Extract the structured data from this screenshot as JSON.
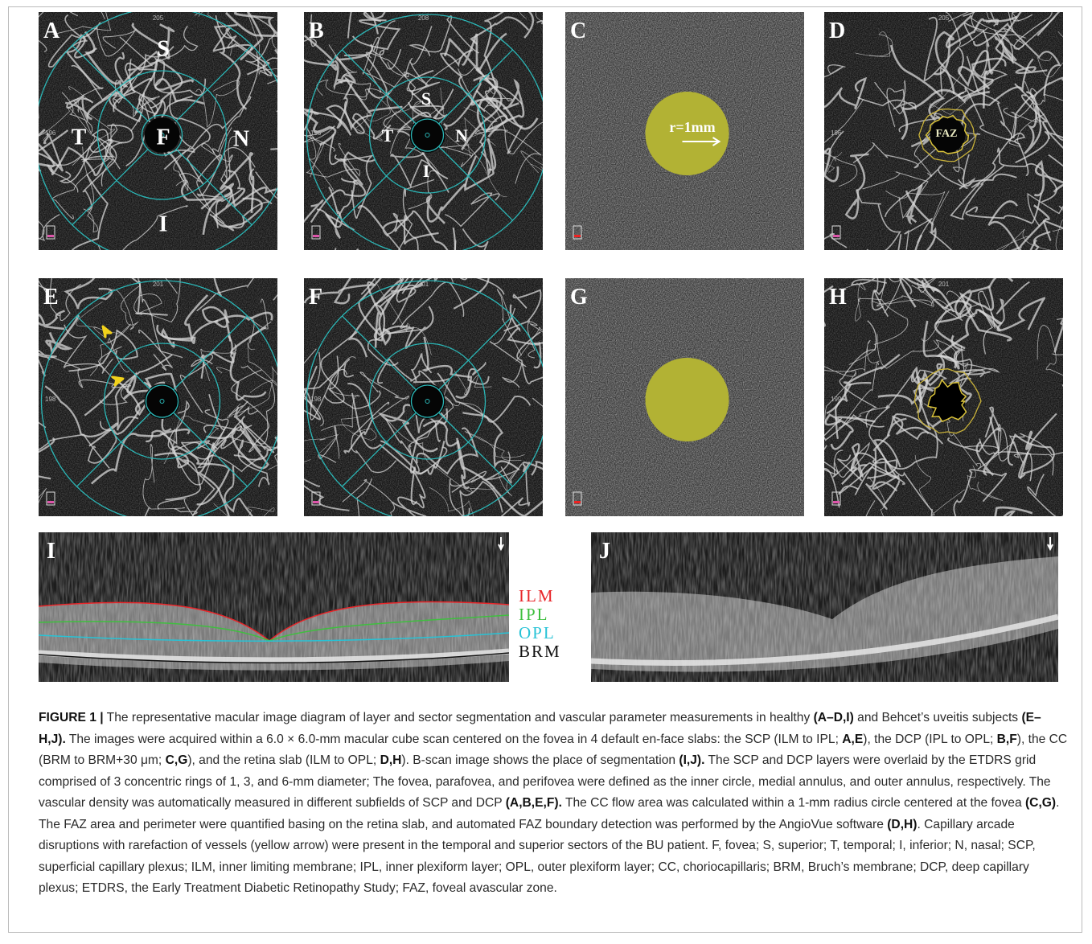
{
  "figure": {
    "panels": [
      {
        "letter": "A",
        "top_number": "205",
        "left_number": "196",
        "labels": [
          "S",
          "T",
          "N",
          "I",
          "F"
        ]
      },
      {
        "letter": "B",
        "top_number": "208",
        "left_number": "196",
        "labels": [
          "S",
          "T",
          "N",
          "I"
        ]
      },
      {
        "letter": "C",
        "labels": [
          "r=1mm"
        ]
      },
      {
        "letter": "D",
        "top_number": "205",
        "left_number": "196",
        "labels": [
          "FAZ"
        ]
      },
      {
        "letter": "E",
        "top_number": "201",
        "left_number": "198",
        "labels": []
      },
      {
        "letter": "F",
        "top_number": "201",
        "left_number": "198",
        "labels": []
      },
      {
        "letter": "G",
        "labels": []
      },
      {
        "letter": "H",
        "top_number": "201",
        "left_number": "199",
        "labels": []
      }
    ],
    "bscans": [
      {
        "letter": "I"
      },
      {
        "letter": "J"
      }
    ],
    "layer_legend": [
      {
        "name": "ILM",
        "color": "#e8262a"
      },
      {
        "name": "IPL",
        "color": "#3fbf3f"
      },
      {
        "name": "OPL",
        "color": "#27c3d6"
      },
      {
        "name": "BRM",
        "color": "#111111"
      }
    ],
    "caption": [
      {
        "text": "FIGURE 1 |",
        "bold": true
      },
      {
        "text": " The representative macular image diagram of layer and sector segmentation and vascular parameter measurements in healthy "
      },
      {
        "text": "(A–D,I)",
        "bold": true
      },
      {
        "text": " and Behcet’s uveitis subjects "
      },
      {
        "text": "(E–H,J).",
        "bold": true
      },
      {
        "text": " The images were acquired within a 6.0 × 6.0-mm macular cube scan centered on the fovea in 4 default en-face slabs: the SCP (ILM to IPL; "
      },
      {
        "text": "A,E",
        "bold": true
      },
      {
        "text": "), the DCP (IPL to OPL; "
      },
      {
        "text": "B,F",
        "bold": true
      },
      {
        "text": "), the CC (BRM to BRM+30 μm; "
      },
      {
        "text": "C,G",
        "bold": true
      },
      {
        "text": "), and the retina slab (ILM to OPL; "
      },
      {
        "text": "D,H",
        "bold": true
      },
      {
        "text": "). B-scan image shows the place of segmentation "
      },
      {
        "text": "(I,J).",
        "bold": true
      },
      {
        "text": " The SCP and DCP layers were overlaid by the ETDRS grid comprised of 3 concentric rings of 1, 3, and 6-mm diameter; The fovea, parafovea, and perifovea were defined as the inner circle, medial annulus, and outer annulus, respectively. The vascular density was automatically measured in different subfields of SCP and DCP "
      },
      {
        "text": "(A,B,E,F).",
        "bold": true
      },
      {
        "text": " The CC flow area was calculated within a 1-mm radius circle centered at the fovea "
      },
      {
        "text": "(C,G)",
        "bold": true
      },
      {
        "text": ". The FAZ area and perimeter were quantified basing on the retina slab, and automated FAZ boundary detection was performed by the AngioVue software "
      },
      {
        "text": "(D,H)",
        "bold": true
      },
      {
        "text": ". Capillary arcade disruptions with rarefaction of vessels (yellow arrow) were present in the temporal and superior sectors of the BU patient. F, fovea; S, superior; T, temporal; I, inferior; N, nasal; SCP, superficial capillary plexus; ILM, inner limiting membrane; IPL, inner plexiform layer; OPL, outer plexiform layer; CC, choriocapillaris; BRM, Bruch’s membrane; DCP, deep capillary plexus; ETDRS, the Early Treatment Diabetic Retinopathy Study; FAZ, foveal avascular zone."
      }
    ]
  }
}
